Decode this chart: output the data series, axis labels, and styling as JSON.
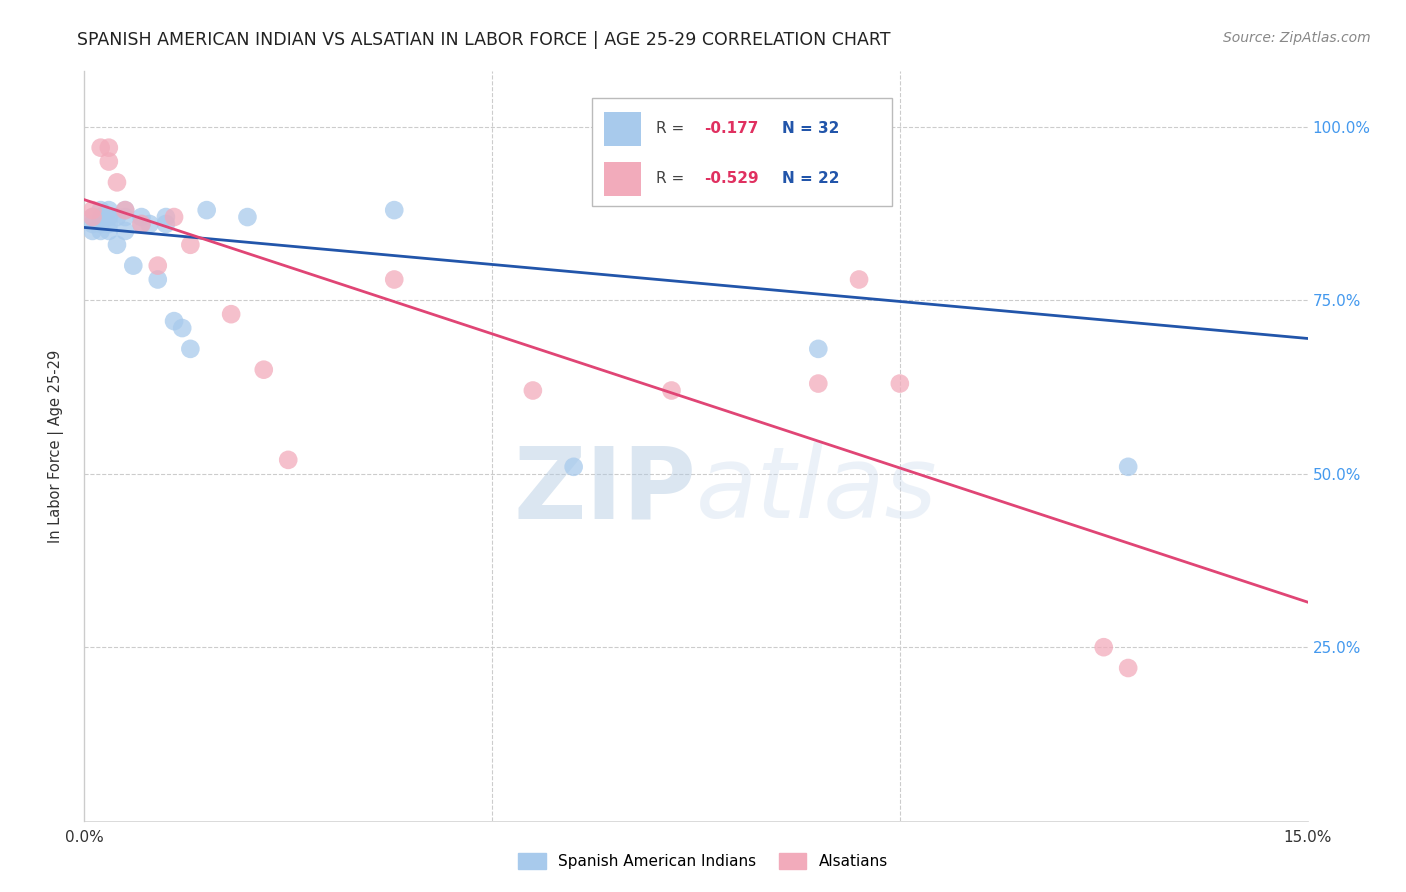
{
  "title": "SPANISH AMERICAN INDIAN VS ALSATIAN IN LABOR FORCE | AGE 25-29 CORRELATION CHART",
  "source": "Source: ZipAtlas.com",
  "ylabel": "In Labor Force | Age 25-29",
  "xlim": [
    0.0,
    0.15
  ],
  "ylim": [
    0.0,
    1.08
  ],
  "yticks": [
    0.25,
    0.5,
    0.75,
    1.0
  ],
  "ytick_labels": [
    "25.0%",
    "50.0%",
    "75.0%",
    "100.0%"
  ],
  "xtick_labels": [
    "0.0%",
    "15.0%"
  ],
  "legend_blue_R": "-0.177",
  "legend_blue_N": "32",
  "legend_pink_R": "-0.529",
  "legend_pink_N": "22",
  "blue_label": "Spanish American Indians",
  "pink_label": "Alsatians",
  "blue_color": "#A8CAEC",
  "pink_color": "#F2ABBB",
  "blue_line_color": "#2255AA",
  "pink_line_color": "#E04575",
  "watermark_zip": "ZIP",
  "watermark_atlas": "atlas",
  "background_color": "#FFFFFF",
  "blue_x": [
    0.001,
    0.001,
    0.001,
    0.002,
    0.002,
    0.002,
    0.002,
    0.003,
    0.003,
    0.003,
    0.003,
    0.004,
    0.004,
    0.005,
    0.005,
    0.005,
    0.006,
    0.007,
    0.007,
    0.008,
    0.009,
    0.01,
    0.01,
    0.011,
    0.012,
    0.013,
    0.015,
    0.02,
    0.038,
    0.06,
    0.09,
    0.128
  ],
  "blue_y": [
    0.87,
    0.86,
    0.85,
    0.88,
    0.87,
    0.86,
    0.85,
    0.88,
    0.87,
    0.86,
    0.85,
    0.87,
    0.83,
    0.88,
    0.87,
    0.85,
    0.8,
    0.87,
    0.86,
    0.86,
    0.78,
    0.87,
    0.86,
    0.72,
    0.71,
    0.68,
    0.88,
    0.87,
    0.88,
    0.51,
    0.68,
    0.51
  ],
  "pink_x": [
    0.001,
    0.001,
    0.002,
    0.003,
    0.003,
    0.004,
    0.005,
    0.007,
    0.009,
    0.011,
    0.013,
    0.018,
    0.022,
    0.025,
    0.038,
    0.055,
    0.072,
    0.09,
    0.095,
    0.1,
    0.125,
    0.128
  ],
  "pink_y": [
    0.88,
    0.87,
    0.97,
    0.97,
    0.95,
    0.92,
    0.88,
    0.86,
    0.8,
    0.87,
    0.83,
    0.73,
    0.65,
    0.52,
    0.78,
    0.62,
    0.62,
    0.63,
    0.78,
    0.63,
    0.25,
    0.22
  ],
  "blue_trend_x0": 0.0,
  "blue_trend_y0": 0.855,
  "blue_trend_x1": 0.15,
  "blue_trend_y1": 0.695,
  "pink_trend_x0": 0.0,
  "pink_trend_y0": 0.895,
  "pink_trend_x1": 0.15,
  "pink_trend_y1": 0.315,
  "title_fontsize": 12.5,
  "source_fontsize": 10,
  "axis_fontsize": 11
}
